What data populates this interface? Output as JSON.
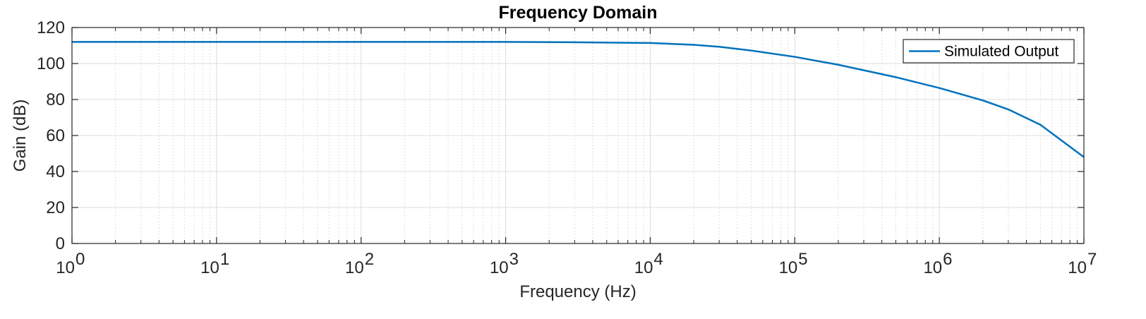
{
  "chart_data": {
    "type": "line",
    "title": "Frequency Domain",
    "xlabel": "Frequency (Hz)",
    "ylabel": "Gain (dB)",
    "xscale": "log",
    "xlim": [
      1,
      10000000
    ],
    "ylim": [
      0,
      120
    ],
    "xticks": [
      {
        "base": "10",
        "exp": "0"
      },
      {
        "base": "10",
        "exp": "1"
      },
      {
        "base": "10",
        "exp": "2"
      },
      {
        "base": "10",
        "exp": "3"
      },
      {
        "base": "10",
        "exp": "4"
      },
      {
        "base": "10",
        "exp": "5"
      },
      {
        "base": "10",
        "exp": "6"
      },
      {
        "base": "10",
        "exp": "7"
      }
    ],
    "yticks": [
      "0",
      "20",
      "40",
      "60",
      "80",
      "100",
      "120"
    ],
    "grid": true,
    "minor_grid": true,
    "legend_position": "top-right",
    "series": [
      {
        "name": "Simulated Output",
        "color": "#0072BD",
        "x": [
          1,
          10,
          100,
          1000,
          3000,
          10000,
          20000,
          30000,
          50000,
          100000,
          200000,
          500000,
          1000000,
          2000000,
          3000000,
          5000000,
          10000000
        ],
        "y": [
          112,
          112,
          112,
          112,
          111.8,
          111.4,
          110.4,
          109.3,
          107.2,
          103.7,
          99.3,
          92.4,
          86.4,
          79.5,
          74.5,
          66,
          48
        ]
      }
    ]
  }
}
